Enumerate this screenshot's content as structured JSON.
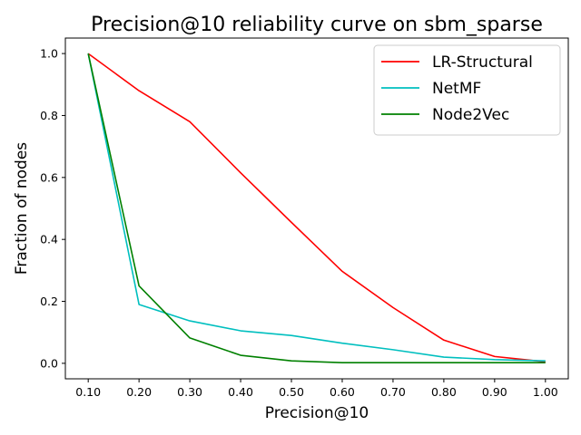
{
  "chart_data": {
    "type": "line",
    "title": "Precision@10 reliability curve on sbm_sparse",
    "xlabel": "Precision@10",
    "ylabel": "Fraction of nodes",
    "x": [
      0.1,
      0.2,
      0.3,
      0.4,
      0.5,
      0.6,
      0.7,
      0.8,
      0.9,
      1.0
    ],
    "xlim": [
      0.055,
      1.045
    ],
    "ylim": [
      -0.05,
      1.05
    ],
    "xticks": [
      0.1,
      0.2,
      0.3,
      0.4,
      0.5,
      0.6,
      0.7,
      0.8,
      0.9,
      1.0
    ],
    "xtick_labels": [
      "0.10",
      "0.20",
      "0.30",
      "0.40",
      "0.50",
      "0.60",
      "0.70",
      "0.80",
      "0.90",
      "1.00"
    ],
    "yticks": [
      0.0,
      0.2,
      0.4,
      0.6,
      0.8,
      1.0
    ],
    "ytick_labels": [
      "0.0",
      "0.2",
      "0.4",
      "0.6",
      "0.8",
      "1.0"
    ],
    "grid": false,
    "legend_position": "top-right",
    "series": [
      {
        "name": "LR-Structural",
        "color": "#ff0000",
        "values": [
          1.0,
          0.88,
          0.78,
          0.615,
          0.455,
          0.297,
          0.18,
          0.075,
          0.022,
          0.005
        ]
      },
      {
        "name": "NetMF",
        "color": "#00bfbf",
        "values": [
          1.0,
          0.19,
          0.137,
          0.105,
          0.09,
          0.065,
          0.044,
          0.02,
          0.012,
          0.008
        ]
      },
      {
        "name": "Node2Vec",
        "color": "#008000",
        "values": [
          1.0,
          0.25,
          0.082,
          0.026,
          0.008,
          0.002,
          0.002,
          0.002,
          0.002,
          0.002
        ]
      }
    ]
  }
}
